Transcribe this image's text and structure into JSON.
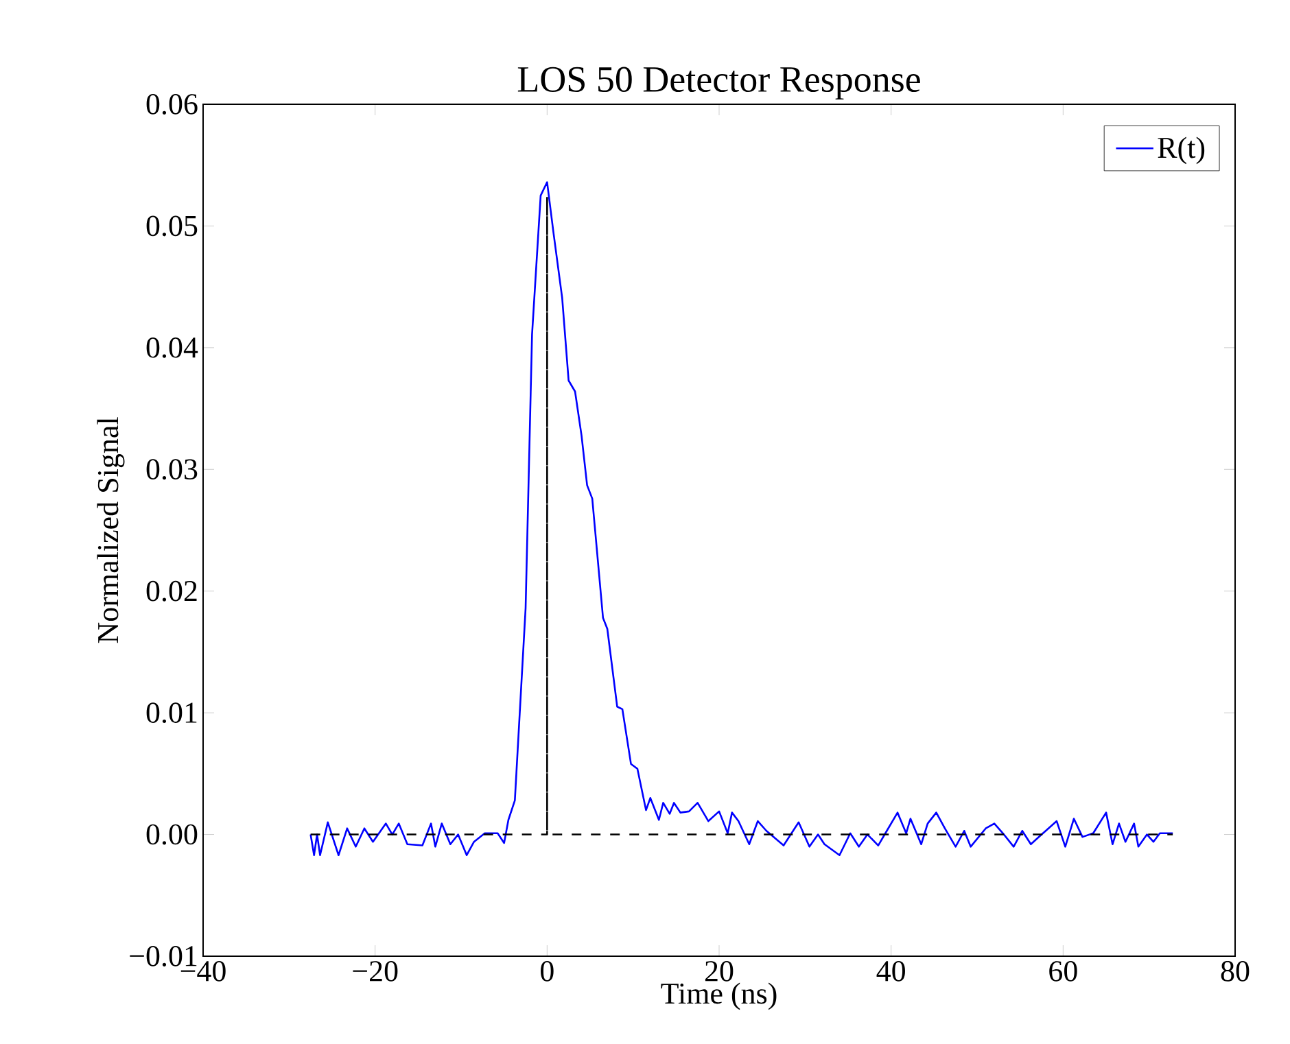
{
  "chart_data": {
    "type": "line",
    "title": "LOS 50 Detector Response",
    "xlabel": "Time (ns)",
    "ylabel": "Normalized Signal",
    "xlim": [
      -40,
      80
    ],
    "ylim": [
      -0.01,
      0.06
    ],
    "xticks": [
      {
        "value": -40,
        "label": "−40"
      },
      {
        "value": -20,
        "label": "−20"
      },
      0,
      20,
      40,
      60,
      80
    ],
    "yticks": [
      {
        "value": -0.01,
        "label": "−0.01"
      },
      {
        "value": 0,
        "label": "0.00"
      },
      {
        "value": 0.01,
        "label": "0.01"
      },
      {
        "value": 0.02,
        "label": "0.02"
      },
      {
        "value": 0.03,
        "label": "0.03"
      },
      {
        "value": 0.04,
        "label": "0.04"
      },
      {
        "value": 0.05,
        "label": "0.05"
      },
      {
        "value": 0.06,
        "label": "0.06"
      }
    ],
    "grid": false,
    "legend": "top right",
    "marker": "none",
    "series": [
      {
        "name": "R(t)",
        "color": "#0000ff",
        "line_style": "solid",
        "x": [
          -27.5,
          -27.1,
          -26.75,
          -26.4,
          -25.5,
          -24.25,
          -23.25,
          -22.25,
          -21.25,
          -20.25,
          -18.75,
          -18,
          -17.25,
          -16.25,
          -14.5,
          -13.5,
          -13,
          -12.25,
          -11.25,
          -10.35,
          -9.35,
          -8.5,
          -7.25,
          -5.75,
          -5,
          -4.5,
          -3.75,
          -2.5,
          -1.75,
          -0.75,
          0,
          0.75,
          1.75,
          2.5,
          3.25,
          4.0,
          4.65,
          5.25,
          6.5,
          7,
          8.15,
          8.75,
          9.75,
          10.5,
          11.5,
          12,
          13,
          13.5,
          14.25,
          14.75,
          15.5,
          16.5,
          17.5,
          18.75,
          20,
          21,
          21.5,
          22.25,
          23.5,
          24.5,
          25.5,
          27.5,
          29.25,
          30.5,
          31.5,
          32.25,
          34,
          35.25,
          36.25,
          37.25,
          38.5,
          39.5,
          40.75,
          41.75,
          42.25,
          43.5,
          44.25,
          45.25,
          46.25,
          47.5,
          48.5,
          49.25,
          51,
          52,
          53,
          54.25,
          55.25,
          56.25,
          57.5,
          59.25,
          60.25,
          61.25,
          62.25,
          63.5,
          65,
          65.75,
          66.5,
          67.25,
          68.25,
          68.75,
          69.75,
          70.5,
          71.25,
          72.75
        ],
        "values": [
          0,
          -0.0017,
          0,
          -0.0017,
          0.001,
          -0.0017,
          0.0005,
          -0.001,
          0.0005,
          -0.0006,
          0.0009,
          0,
          0.0009,
          -0.0008,
          -0.0009,
          0.0009,
          -0.001,
          0.0009,
          -0.0008,
          0,
          -0.0017,
          -0.0006,
          0.0001,
          0.0001,
          -0.0007,
          0.0012,
          0.0028,
          0.0186,
          0.0411,
          0.0525,
          0.0536,
          0.0494,
          0.0441,
          0.0373,
          0.0364,
          0.0328,
          0.0287,
          0.0276,
          0.0178,
          0.0169,
          0.0105,
          0.0103,
          0.0058,
          0.0054,
          0.002,
          0.003,
          0.0012,
          0.0026,
          0.0017,
          0.0026,
          0.0018,
          0.0019,
          0.0026,
          0.0011,
          0.0019,
          0.0001,
          0.0018,
          0.0011,
          -0.0008,
          0.0011,
          0.0003,
          -0.0009,
          0.001,
          -0.001,
          0,
          -0.0008,
          -0.0017,
          0.0001,
          -0.001,
          0,
          -0.0009,
          0.0003,
          0.0018,
          0.0001,
          0.0013,
          -0.0008,
          0.0009,
          0.0018,
          0.0005,
          -0.001,
          0.0003,
          -0.001,
          0.0005,
          0.0009,
          0.0001,
          -0.001,
          0.0003,
          -0.0008,
          0,
          0.0011,
          -0.001,
          0.0013,
          -0.0002,
          0.0001,
          0.0018,
          -0.0008,
          0.0009,
          -0.0006,
          0.0009,
          -0.001,
          0,
          -0.0006,
          0.0001,
          0.0001
        ]
      },
      {
        "color": "#000000",
        "line_style": "dashed",
        "x": [
          -27.5,
          0,
          0,
          0,
          72.75
        ],
        "values": [
          0,
          0,
          0.0524,
          0,
          0
        ]
      }
    ]
  }
}
